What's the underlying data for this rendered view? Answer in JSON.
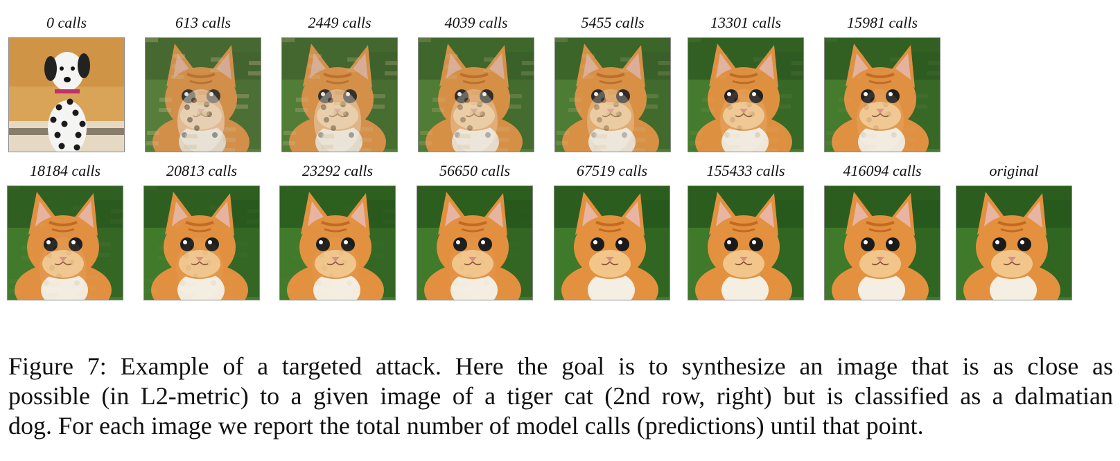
{
  "figure": {
    "rows": [
      {
        "cells": [
          {
            "label": "0 calls",
            "image": "dalmatian"
          },
          {
            "label": "613 calls",
            "image": "blend",
            "blend": 0.55
          },
          {
            "label": "2449 calls",
            "image": "blend",
            "blend": 0.62
          },
          {
            "label": "4039 calls",
            "image": "blend",
            "blend": 0.68
          },
          {
            "label": "5455 calls",
            "image": "blend",
            "blend": 0.72
          },
          {
            "label": "13301 calls",
            "image": "blend",
            "blend": 0.88
          },
          {
            "label": "15981 calls",
            "image": "blend",
            "blend": 0.9
          }
        ]
      },
      {
        "cells": [
          {
            "label": "18184 calls",
            "image": "blend",
            "blend": 0.93
          },
          {
            "label": "20813 calls",
            "image": "blend",
            "blend": 0.95
          },
          {
            "label": "23292 calls",
            "image": "blend",
            "blend": 0.96
          },
          {
            "label": "56650 calls",
            "image": "blend",
            "blend": 0.98
          },
          {
            "label": "67519 calls",
            "image": "blend",
            "blend": 0.985
          },
          {
            "label": "155433 calls",
            "image": "blend",
            "blend": 0.99
          },
          {
            "label": "416094 calls",
            "image": "blend",
            "blend": 0.995
          },
          {
            "label": "original",
            "image": "tiger-cat"
          }
        ]
      }
    ],
    "caption_line1": "Figure 7: Example of a targeted attack. Here the goal is to synthesize an image that is as close as",
    "caption_line2": "possible (in L2-metric) to a given image of a tiger cat (2nd row, right) but is classified as a dalmatian",
    "caption_line3": "dog. For each image we report the total number of model calls (predictions) until that point."
  },
  "colors": {
    "fur": "#e3913f",
    "fur_light": "#f2c58a",
    "grass": "#3f7a2a",
    "grass_dark": "#24521a",
    "dalmatian_bg": "#d9a457"
  }
}
